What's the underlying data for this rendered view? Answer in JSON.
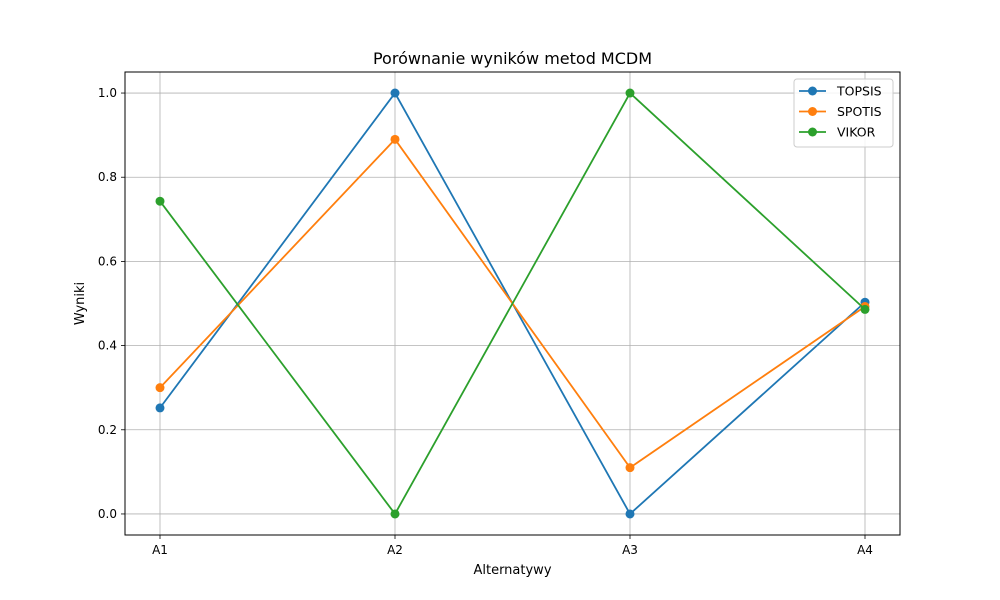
{
  "chart_data": {
    "type": "line",
    "title": "Porównanie wyników metod MCDM",
    "xlabel": "Alternatywy",
    "ylabel": "Wyniki",
    "categories": [
      "A1",
      "A2",
      "A3",
      "A4"
    ],
    "ylim": [
      -0.05,
      1.05
    ],
    "yticks": [
      "0.0",
      "0.2",
      "0.4",
      "0.6",
      "0.8",
      "1.0"
    ],
    "grid": true,
    "legend_position": "top-right",
    "series": [
      {
        "name": "TOPSIS",
        "color": "#1f77b4",
        "values": [
          0.252,
          1.0,
          0.0,
          0.503
        ]
      },
      {
        "name": "SPOTIS",
        "color": "#ff7f0e",
        "values": [
          0.3,
          0.89,
          0.11,
          0.493
        ]
      },
      {
        "name": "VIKOR",
        "color": "#2ca02c",
        "values": [
          0.743,
          0.0,
          1.0,
          0.486
        ]
      }
    ]
  }
}
